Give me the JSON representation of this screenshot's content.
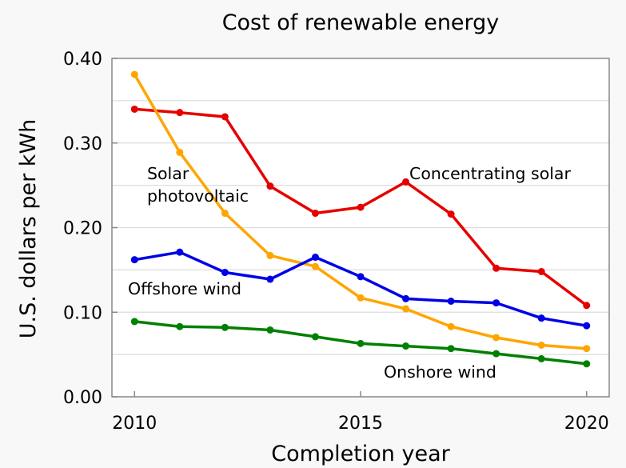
{
  "chart_data": {
    "type": "line",
    "title": "Cost of renewable energy",
    "xlabel": "Completion year",
    "ylabel": "U.S. dollars per kWh",
    "xlim": [
      2009.5,
      2020.5
    ],
    "ylim": [
      0,
      0.4
    ],
    "grid": true,
    "x_ticks": [
      2010,
      2015,
      2020
    ],
    "x_tick_labels": [
      "2010",
      "2015",
      "2020"
    ],
    "y_ticks": [
      0,
      0.1,
      0.2,
      0.3,
      0.4
    ],
    "y_tick_labels": [
      "0.00",
      "0.10",
      "0.20",
      "0.30",
      "0.40"
    ],
    "y_gridlines": [
      0.05,
      0.1,
      0.15,
      0.2,
      0.25,
      0.3,
      0.35
    ],
    "x": [
      2010,
      2011,
      2012,
      2013,
      2014,
      2015,
      2016,
      2017,
      2018,
      2019,
      2020
    ],
    "series": [
      {
        "name": "Concentrating solar",
        "label_lines": [
          "Concentrating solar"
        ],
        "color": "#e60000",
        "values": [
          0.34,
          0.336,
          0.331,
          0.249,
          0.217,
          0.224,
          0.254,
          0.216,
          0.152,
          0.148,
          0.108
        ]
      },
      {
        "name": "Solar photovoltaic",
        "label_lines": [
          "Solar",
          "photovoltaic"
        ],
        "color": "#ffa500",
        "values": [
          0.381,
          0.289,
          0.217,
          0.167,
          0.154,
          0.117,
          0.104,
          0.083,
          0.07,
          0.061,
          0.057
        ]
      },
      {
        "name": "Offshore wind",
        "label_lines": [
          "Offshore wind"
        ],
        "color": "#0000e6",
        "values": [
          0.162,
          0.171,
          0.147,
          0.139,
          0.165,
          0.142,
          0.116,
          0.113,
          0.111,
          0.093,
          0.084
        ]
      },
      {
        "name": "Onshore wind",
        "label_lines": [
          "Onshore wind"
        ],
        "color": "#008000",
        "values": [
          0.089,
          0.083,
          0.082,
          0.079,
          0.071,
          0.063,
          0.06,
          0.057,
          0.051,
          0.045,
          0.039
        ]
      }
    ],
    "annotations": [
      {
        "text": "Concentrating solar",
        "series": "Concentrating solar"
      },
      {
        "text": "Solar photovoltaic",
        "series": "Solar photovoltaic"
      },
      {
        "text": "Offshore wind",
        "series": "Offshore wind"
      },
      {
        "text": "Onshore wind",
        "series": "Onshore wind"
      }
    ]
  }
}
